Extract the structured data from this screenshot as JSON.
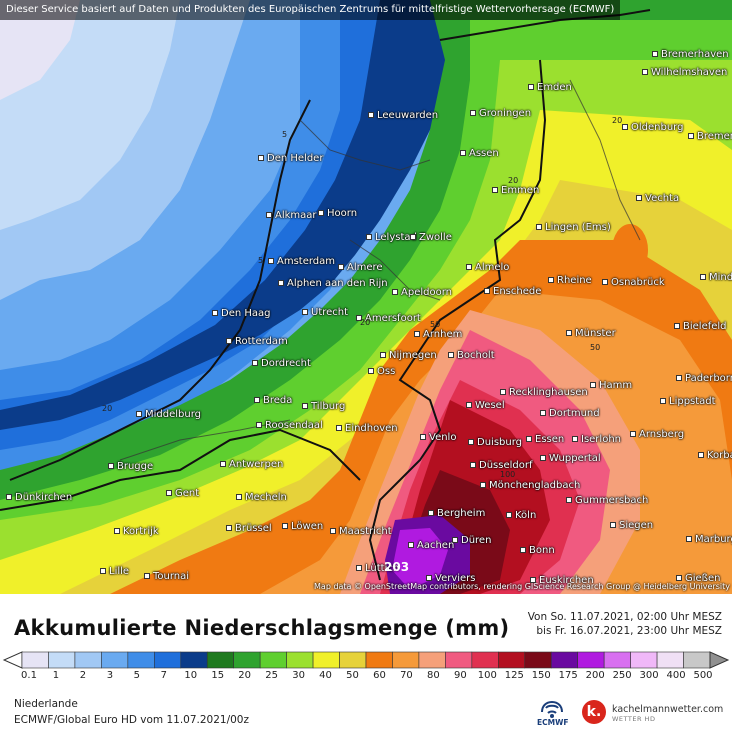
{
  "header_note": "Dieser Service basiert auf Daten und Produkten des Europäischen Zentrums für mittelfristige Wettervorhersage (ECMWF)",
  "attribution": "Map data © OpenStreetMap contributors, rendering GIScience Research Group @ Heidelberg University",
  "title": "Akkumulierte Niederschlagsmenge (mm)",
  "period_line1": "Von So. 11.07.2021, 02:00 Uhr MESZ",
  "period_line2": "bis Fr. 16.07.2021, 23:00 Uhr MESZ",
  "region": "Niederlande",
  "model": "ECMWF/Global Euro HD vom  11.07.2021/00z",
  "logo_ecmwf": "ECMWF",
  "logo_kach_letter": "k.",
  "logo_kach_name": "kachelmannwetter.com",
  "logo_kach_sub": "WETTER HD",
  "legend": {
    "ticks": [
      "0.1",
      "1",
      "2",
      "3",
      "5",
      "7",
      "10",
      "15",
      "20",
      "25",
      "30",
      "40",
      "50",
      "60",
      "70",
      "80",
      "90",
      "100",
      "125",
      "150",
      "175",
      "200",
      "250",
      "300",
      "400",
      "500"
    ],
    "colors": [
      "#e6e4f5",
      "#c4dcf7",
      "#a1c8f4",
      "#6aaaf0",
      "#3f8de8",
      "#1f6fdb",
      "#0b3c8a",
      "#1f7a1f",
      "#2fa32f",
      "#5fcf2f",
      "#9be02f",
      "#f0f02a",
      "#e6d23a",
      "#f07a12",
      "#f59a3a",
      "#f5a07a",
      "#f05a80",
      "#e03050",
      "#b30f20",
      "#7a0a18",
      "#6a0aa0",
      "#b01ae0",
      "#d870f0",
      "#f0b8f8",
      "#f0e0f5",
      "#c8c8c8"
    ]
  },
  "contour_labels": [
    "5",
    "5",
    "20",
    "20",
    "50",
    "20",
    "20",
    "50",
    "100",
    "203"
  ],
  "cities": [
    {
      "name": "Bremerhaven"
    },
    {
      "name": "Wilhelmshaven"
    },
    {
      "name": "Emden"
    },
    {
      "name": "Leeuwarden"
    },
    {
      "name": "Groningen"
    },
    {
      "name": "Oldenburg"
    },
    {
      "name": "Bremen"
    },
    {
      "name": "Den Helder"
    },
    {
      "name": "Assen"
    },
    {
      "name": "Emmen"
    },
    {
      "name": "Vechta"
    },
    {
      "name": "Alkmaar"
    },
    {
      "name": "Hoorn"
    },
    {
      "name": "Lelystad"
    },
    {
      "name": "Zwolle"
    },
    {
      "name": "Lingen (Ems)"
    },
    {
      "name": "Amsterdam"
    },
    {
      "name": "Almere"
    },
    {
      "name": "Almelo"
    },
    {
      "name": "Rheine"
    },
    {
      "name": "Osnabrück"
    },
    {
      "name": "Minden"
    },
    {
      "name": "Alphen aan den Rijn"
    },
    {
      "name": "Apeldoorn"
    },
    {
      "name": "Enschede"
    },
    {
      "name": "Den Haag"
    },
    {
      "name": "Utrecht"
    },
    {
      "name": "Amersfoort"
    },
    {
      "name": "Bielefeld"
    },
    {
      "name": "Rotterdam"
    },
    {
      "name": "Arnhem"
    },
    {
      "name": "Münster"
    },
    {
      "name": "Nijmegen"
    },
    {
      "name": "Bocholt"
    },
    {
      "name": "Dordrecht"
    },
    {
      "name": "Oss"
    },
    {
      "name": "Hamm"
    },
    {
      "name": "Paderborn"
    },
    {
      "name": "Recklinghausen"
    },
    {
      "name": "Breda"
    },
    {
      "name": "Tilburg"
    },
    {
      "name": "Wesel"
    },
    {
      "name": "Lippstadt"
    },
    {
      "name": "Middelburg"
    },
    {
      "name": "Dortmund"
    },
    {
      "name": "Roosendaal"
    },
    {
      "name": "Eindhoven"
    },
    {
      "name": "Venlo"
    },
    {
      "name": "Duisburg"
    },
    {
      "name": "Essen"
    },
    {
      "name": "Iserlohn"
    },
    {
      "name": "Arnsberg"
    },
    {
      "name": "Brugge"
    },
    {
      "name": "Antwerpen"
    },
    {
      "name": "Düsseldorf"
    },
    {
      "name": "Wuppertal"
    },
    {
      "name": "Korbach"
    },
    {
      "name": "Mönchengladbach"
    },
    {
      "name": "Dünkirchen"
    },
    {
      "name": "Gent"
    },
    {
      "name": "Mecheln"
    },
    {
      "name": "Gummersbach"
    },
    {
      "name": "Bergheim"
    },
    {
      "name": "Köln"
    },
    {
      "name": "Kortrijk"
    },
    {
      "name": "Siegen"
    },
    {
      "name": "Brüssel"
    },
    {
      "name": "Löwen"
    },
    {
      "name": "Maastricht"
    },
    {
      "name": "Düren"
    },
    {
      "name": "Aachen"
    },
    {
      "name": "Marburg"
    },
    {
      "name": "Bonn"
    },
    {
      "name": "Lille"
    },
    {
      "name": "Tournai"
    },
    {
      "name": "Lüttich"
    },
    {
      "name": "Verviers"
    },
    {
      "name": "Euskirchen"
    },
    {
      "name": "Gießen"
    }
  ]
}
